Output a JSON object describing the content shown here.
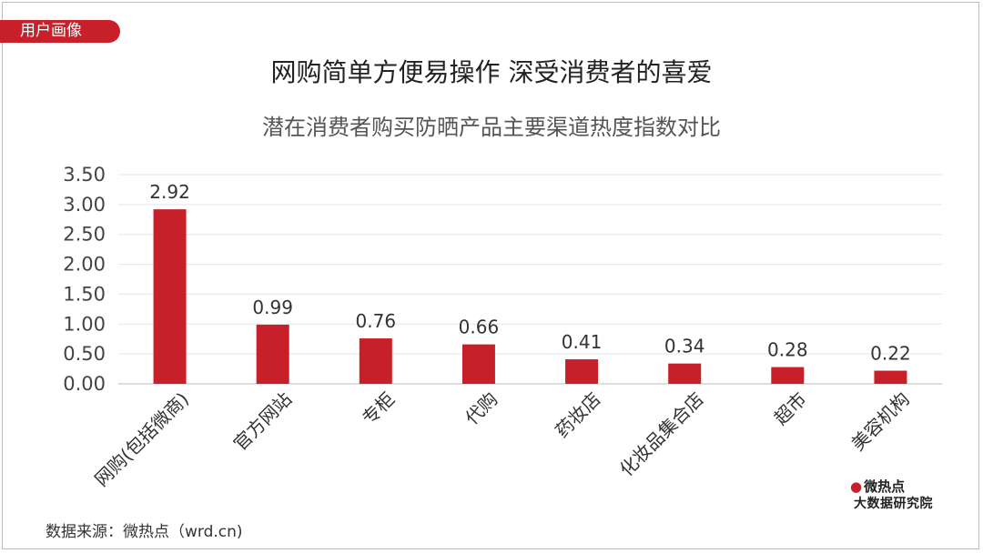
{
  "header": {
    "tag": "用户画像",
    "title": "网购简单方便易操作 深受消费者的喜爱",
    "subtitle": "潜在消费者购买防晒产品主要渠道热度指数对比"
  },
  "footer": {
    "source": "数据来源：微热点（wrd.cn)",
    "logo_line1": "微热点",
    "logo_line2": "大数据研究院"
  },
  "colors": {
    "bar": "#c8202a",
    "tag_bg": "#c8202a",
    "grid": "#e5e5e5"
  },
  "chart_data": {
    "type": "bar",
    "title": "潜在消费者购买防晒产品主要渠道热度指数对比",
    "xlabel": "",
    "ylabel": "",
    "categories": [
      "网购(包括微商)",
      "官方网站",
      "专柜",
      "代购",
      "药妆店",
      "化妆品集合店",
      "超市",
      "美容机构"
    ],
    "values": [
      2.92,
      0.99,
      0.76,
      0.66,
      0.41,
      0.34,
      0.28,
      0.22
    ],
    "value_labels": [
      "2.92",
      "0.99",
      "0.76",
      "0.66",
      "0.41",
      "0.34",
      "0.28",
      "0.22"
    ],
    "yticks": [
      "0.00",
      "0.50",
      "1.00",
      "1.50",
      "2.00",
      "2.50",
      "3.00",
      "3.50"
    ],
    "ylim": [
      0,
      3.5
    ],
    "grid": true,
    "legend": "none"
  }
}
